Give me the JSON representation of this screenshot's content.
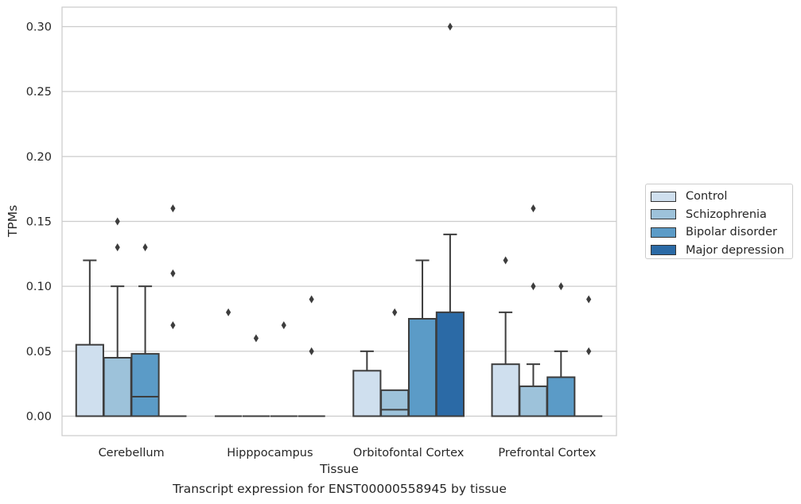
{
  "caption": "Transcript expression for ENST00000558945 by tissue",
  "chart_data": {
    "type": "box",
    "xlabel": "Tissue",
    "ylabel": "TPMs",
    "ylim": [
      -0.015,
      0.315
    ],
    "yticks": [
      0.0,
      0.05,
      0.1,
      0.15,
      0.2,
      0.25,
      0.3
    ],
    "ytick_labels": [
      "0.00",
      "0.05",
      "0.10",
      "0.15",
      "0.20",
      "0.25",
      "0.30"
    ],
    "grid": "horizontal",
    "legend_position": "right",
    "categories": [
      "Cerebellum",
      "Hipppocampus",
      "Orbitofontal Cortex",
      "Prefrontal Cortex"
    ],
    "series": [
      {
        "name": "Control",
        "color": "#cfdfee",
        "boxes": [
          {
            "q1": 0.0,
            "median": 0.0,
            "q3": 0.055,
            "whislo": 0.0,
            "whishi": 0.12,
            "fliers": []
          },
          {
            "q1": 0.0,
            "median": 0.0,
            "q3": 0.0,
            "whislo": 0.0,
            "whishi": 0.0,
            "fliers": [
              0.08
            ]
          },
          {
            "q1": 0.0,
            "median": 0.0,
            "q3": 0.035,
            "whislo": 0.0,
            "whishi": 0.05,
            "fliers": []
          },
          {
            "q1": 0.0,
            "median": 0.0,
            "q3": 0.04,
            "whislo": 0.0,
            "whishi": 0.08,
            "fliers": [
              0.12
            ]
          }
        ]
      },
      {
        "name": "Schizophrenia",
        "color": "#9dc2da",
        "boxes": [
          {
            "q1": 0.0,
            "median": 0.0,
            "q3": 0.045,
            "whislo": 0.0,
            "whishi": 0.1,
            "fliers": [
              0.13,
              0.15
            ]
          },
          {
            "q1": 0.0,
            "median": 0.0,
            "q3": 0.0,
            "whislo": 0.0,
            "whishi": 0.0,
            "fliers": [
              0.06
            ]
          },
          {
            "q1": 0.0,
            "median": 0.005,
            "q3": 0.02,
            "whislo": 0.0,
            "whishi": 0.02,
            "fliers": [
              0.08
            ]
          },
          {
            "q1": 0.0,
            "median": 0.0,
            "q3": 0.023,
            "whislo": 0.0,
            "whishi": 0.04,
            "fliers": [
              0.1,
              0.16
            ]
          }
        ]
      },
      {
        "name": "Bipolar disorder",
        "color": "#5b9bc7",
        "boxes": [
          {
            "q1": 0.0,
            "median": 0.015,
            "q3": 0.048,
            "whislo": 0.0,
            "whishi": 0.1,
            "fliers": [
              0.13
            ]
          },
          {
            "q1": 0.0,
            "median": 0.0,
            "q3": 0.0,
            "whislo": 0.0,
            "whishi": 0.0,
            "fliers": [
              0.07
            ]
          },
          {
            "q1": 0.0,
            "median": 0.0,
            "q3": 0.075,
            "whislo": 0.0,
            "whishi": 0.12,
            "fliers": []
          },
          {
            "q1": 0.0,
            "median": 0.0,
            "q3": 0.03,
            "whislo": 0.0,
            "whishi": 0.05,
            "fliers": [
              0.1
            ]
          }
        ]
      },
      {
        "name": "Major depression",
        "color": "#2b6aa6",
        "boxes": [
          {
            "q1": 0.0,
            "median": 0.0,
            "q3": 0.0,
            "whislo": 0.0,
            "whishi": 0.0,
            "fliers": [
              0.07,
              0.11,
              0.16
            ]
          },
          {
            "q1": 0.0,
            "median": 0.0,
            "q3": 0.0,
            "whislo": 0.0,
            "whishi": 0.0,
            "fliers": [
              0.05,
              0.09
            ]
          },
          {
            "q1": 0.0,
            "median": 0.0,
            "q3": 0.08,
            "whislo": 0.0,
            "whishi": 0.14,
            "fliers": [
              0.3
            ]
          },
          {
            "q1": 0.0,
            "median": 0.0,
            "q3": 0.0,
            "whislo": 0.0,
            "whishi": 0.0,
            "fliers": [
              0.05,
              0.09
            ]
          }
        ]
      }
    ]
  }
}
